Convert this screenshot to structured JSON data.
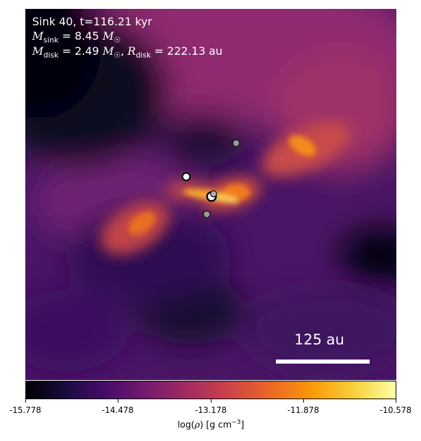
{
  "header": {
    "title": "Sink 40, t=116.21 kyr",
    "mass_sink_value": "8.45",
    "mass_disk_value": "2.49",
    "radius_disk_value": "222.13"
  },
  "scale_bar": {
    "label": "125 au"
  },
  "colorbar": {
    "ticks": [
      "-15.778",
      "-14.478",
      "-13.178",
      "-11.878",
      "-10.578"
    ],
    "label_prefix": "log(",
    "label_mid": ") [g cm",
    "label_exp": "−3",
    "label_suffix": "]",
    "colormap": "inferno"
  },
  "sinks": [
    {
      "style": "white-ring"
    },
    {
      "style": "grey"
    },
    {
      "style": "grey"
    },
    {
      "style": "dark-ring"
    },
    {
      "style": "grey"
    }
  ]
}
